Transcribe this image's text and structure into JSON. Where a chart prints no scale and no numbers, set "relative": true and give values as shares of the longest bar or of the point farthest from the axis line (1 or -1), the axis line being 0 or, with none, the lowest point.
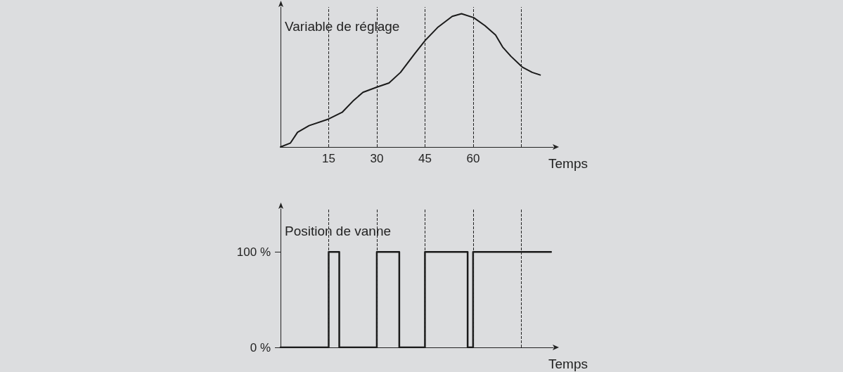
{
  "chart_data": [
    {
      "type": "line",
      "ylabel": "Variable de réglage",
      "xlabel": "Temps",
      "relative": true,
      "xlim": [
        0,
        85
      ],
      "xticks": [
        15,
        30,
        45,
        60
      ],
      "tick_labels": "x",
      "marker": "none",
      "line_style": "solid",
      "series": [
        {
          "color": "#1a1a1a",
          "x": [
            0,
            3.1,
            5.3,
            8.9,
            15,
            19.2,
            22.8,
            25.7,
            30.1,
            33.8,
            37.4,
            41.8,
            45.1,
            49.1,
            53.5,
            56.4,
            60.2,
            63.7,
            67,
            69.2,
            71.8,
            75.3,
            78.4,
            80.9
          ],
          "values": [
            0,
            0.03,
            0.11,
            0.16,
            0.21,
            0.26,
            0.35,
            0.41,
            0.45,
            0.48,
            0.56,
            0.7,
            0.8,
            0.9,
            0.98,
            1,
            0.97,
            0.91,
            0.84,
            0.75,
            0.68,
            0.6,
            0.56,
            0.54
          ]
        }
      ],
      "ref_lines": [
        {
          "axis": "x",
          "value": 15,
          "line_style": "dashed"
        },
        {
          "axis": "x",
          "value": 30,
          "line_style": "dashed"
        },
        {
          "axis": "x",
          "value": 45,
          "line_style": "dashed"
        },
        {
          "axis": "x",
          "value": 60,
          "line_style": "dashed"
        },
        {
          "axis": "x",
          "value": 75,
          "line_style": "dashed"
        }
      ]
    },
    {
      "type": "step",
      "ylabel": "Position de vanne",
      "xlabel": "Temps",
      "xlim": [
        0,
        85
      ],
      "ylim": [
        0,
        145
      ],
      "yticks": [
        {
          "value": 0,
          "label": "0 %"
        },
        {
          "value": 100,
          "label": "100 %"
        }
      ],
      "tick_labels": "y",
      "marker": "none",
      "line_style": "solid",
      "series": [
        {
          "color": "#1a1a1a",
          "x": [
            0,
            15,
            18.3,
            30,
            37,
            45,
            58.3,
            60,
            84.3
          ],
          "values": [
            0,
            100,
            0,
            100,
            0,
            100,
            0,
            100,
            100
          ]
        }
      ],
      "ref_lines": [
        {
          "axis": "x",
          "value": 15,
          "line_style": "dashed"
        },
        {
          "axis": "x",
          "value": 30,
          "line_style": "dashed"
        },
        {
          "axis": "x",
          "value": 45,
          "line_style": "dashed"
        },
        {
          "axis": "x",
          "value": 60,
          "line_style": "dashed"
        },
        {
          "axis": "x",
          "value": 75,
          "line_style": "dashed"
        }
      ]
    }
  ]
}
